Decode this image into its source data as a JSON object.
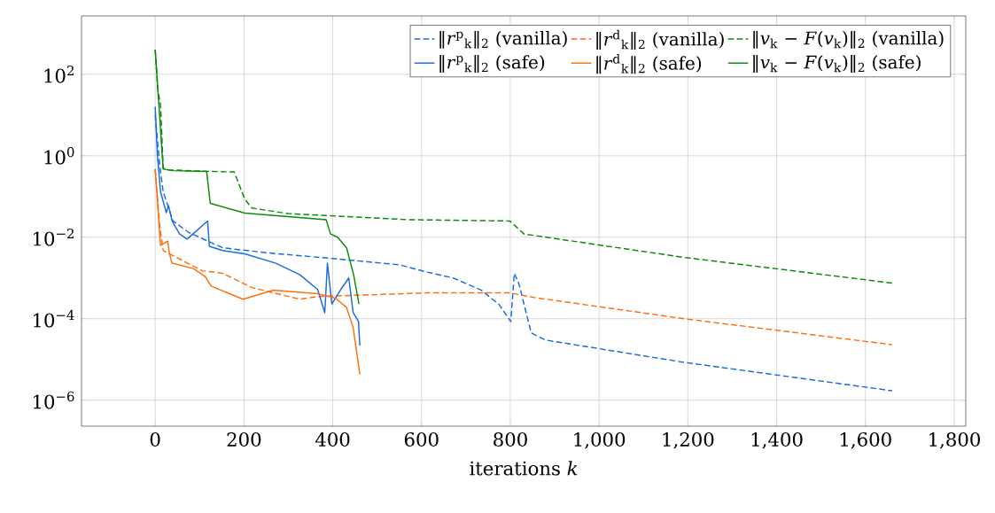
{
  "chart_data": {
    "type": "line",
    "xlabel": "iterations *k*",
    "log": "y",
    "grid": true,
    "legend": "top right",
    "marker": "none",
    "xlim": [
      -166,
      1826
    ],
    "ylim": [
      2.3e-07,
      2700
    ],
    "xticks": [
      0,
      200,
      400,
      600,
      800,
      {
        "value": 1000,
        "label": "1,000"
      },
      {
        "value": 1200,
        "label": "1,200"
      },
      {
        "value": 1400,
        "label": "1,400"
      },
      {
        "value": 1600,
        "label": "1,600"
      },
      {
        "value": 1800,
        "label": "1,800"
      }
    ],
    "yticks": [
      {
        "value": 1e-06,
        "label": "10$^{−6}$"
      },
      {
        "value": 0.0001,
        "label": "10$^{−4}$"
      },
      {
        "value": 0.01,
        "label": "10$^{−2}$"
      },
      {
        "value": 1,
        "label": "10$^{0}$"
      },
      {
        "value": 100,
        "label": "10$^{2}$"
      }
    ],
    "series": [
      {
        "name": "‖*r*$^{p}$$_{k}$‖$_{2}$ (vanilla)",
        "color": "#1a6be0",
        "line_style": "dashed",
        "x": [
          0,
          10,
          18,
          40,
          76,
          152,
          256,
          400,
          551,
          611,
          671,
          735,
          775,
          801,
          809,
          819,
          847,
          879,
          1191,
          1660
        ],
        "values": [
          10,
          0.6,
          0.13,
          0.025,
          0.013,
          0.0055,
          0.0041,
          0.003,
          0.0021,
          0.0014,
          0.001,
          0.0005,
          0.00022,
          8.5e-05,
          0.0013,
          0.00074,
          4.5e-05,
          3e-05,
          8.5e-06,
          1.7e-06
        ]
      },
      {
        "name": "‖*r*$^{d}$$_{k}$‖$_{2}$ (vanilla)",
        "color": "#ff6e0f",
        "line_style": "dashed",
        "x": [
          0,
          10,
          18,
          106,
          152,
          218,
          326,
          366,
          611,
          799,
          855,
          1191,
          1660
        ],
        "values": [
          0.47,
          0.02,
          0.0047,
          0.0015,
          0.0013,
          0.00058,
          0.0003,
          0.00035,
          0.00043,
          0.00043,
          0.00033,
          0.0001,
          2.3e-05
        ]
      },
      {
        "name": "‖*v*$_{k}$ − *F*(*v*$_{k}$)‖$_{2}$ (vanilla)",
        "color": "#0a8a0a",
        "line_style": "dashed",
        "x": [
          0,
          6,
          12,
          18,
          30,
          100,
          178,
          202,
          218,
          300,
          567,
          799,
          831,
          1191,
          1660
        ],
        "values": [
          400,
          40,
          18,
          0.5,
          0.45,
          0.42,
          0.4,
          0.085,
          0.052,
          0.038,
          0.027,
          0.025,
          0.012,
          0.0032,
          0.00075
        ]
      },
      {
        "name": "‖*r*$^{p}$$_{k}$‖$_{2}$ (safe)",
        "color": "#1a6be0",
        "line_style": "solid",
        "x": [
          0,
          5,
          12,
          25,
          30,
          38,
          55,
          72,
          118,
          122,
          152,
          202,
          272,
          326,
          366,
          382,
          388,
          398,
          418,
          436,
          446,
          458,
          461
        ],
        "values": [
          16,
          1,
          0.13,
          0.04,
          0.06,
          0.025,
          0.012,
          0.009,
          0.025,
          0.006,
          0.0047,
          0.0039,
          0.0023,
          0.0012,
          0.00052,
          0.00014,
          0.0023,
          0.00023,
          0.00052,
          0.001,
          0.00014,
          8.5e-05,
          2.2e-05
        ]
      },
      {
        "name": "‖*r*$^{d}$$_{k}$‖$_{2}$ (safe)",
        "color": "#ff6e0f",
        "line_style": "solid",
        "x": [
          0,
          12,
          28,
          32,
          38,
          86,
          112,
          126,
          198,
          266,
          366,
          406,
          431,
          446,
          461
        ],
        "values": [
          0.47,
          0.0063,
          0.008,
          0.004,
          0.0023,
          0.0017,
          0.0011,
          0.00063,
          0.0003,
          0.0005,
          0.00041,
          0.00032,
          0.00019,
          6e-05,
          4.3e-06
        ]
      },
      {
        "name": "‖*v*$_{k}$ − *F*(*v*$_{k}$)‖$_{2}$ (safe)",
        "color": "#0a8a0a",
        "line_style": "solid",
        "x": [
          0,
          18,
          40,
          116,
          124,
          202,
          385,
          395,
          411,
          431,
          447,
          459
        ],
        "values": [
          400,
          0.47,
          0.43,
          0.41,
          0.068,
          0.039,
          0.027,
          0.012,
          0.01,
          0.0055,
          0.0012,
          0.00023
        ]
      }
    ]
  }
}
